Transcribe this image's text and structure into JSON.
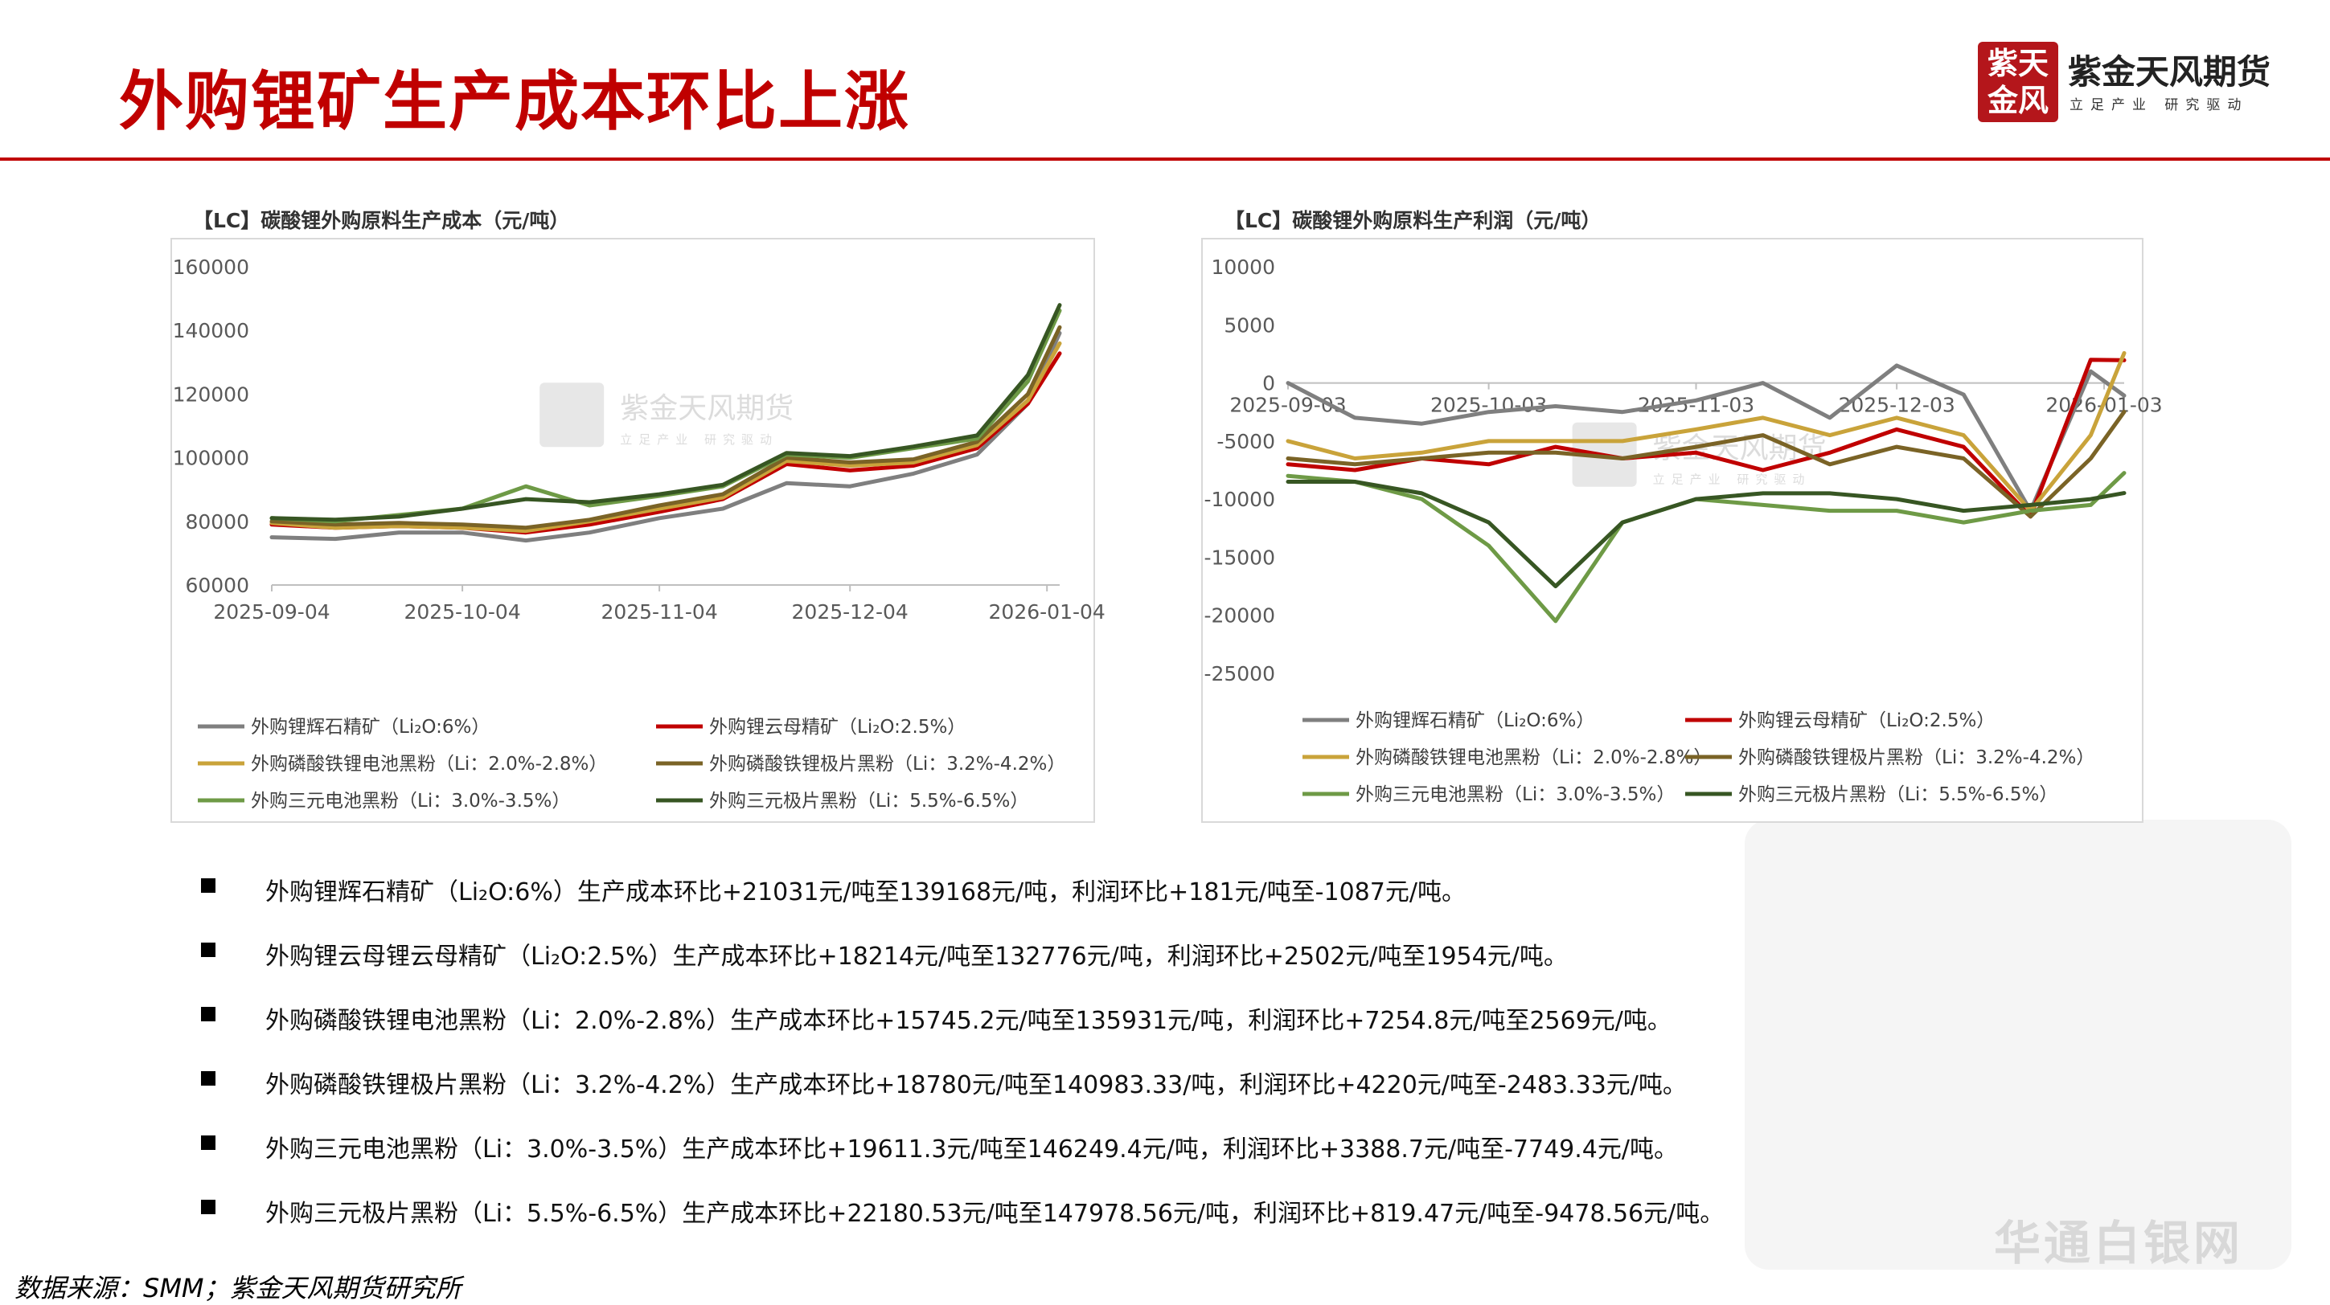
{
  "page_title": "外购锂矿生产成本环比上涨",
  "logo": {
    "seal_chars": [
      "紫天",
      "金风"
    ],
    "name": "紫金天风期货",
    "slogan": "立足产业 研究驱动"
  },
  "colors": {
    "title_red": "#c00000",
    "grey": "#7f7f7f",
    "red": "#c00000",
    "gold": "#c9a33a",
    "olive": "#7a6326",
    "green": "#6e9a46",
    "darkgreen": "#375623"
  },
  "chart_data": [
    {
      "type": "line",
      "title": "【LC】碳酸锂外购原料生产成本（元/吨）",
      "x_start": "2025-09-04",
      "x_end": "2026-01-06",
      "x_ticks": [
        "2025-09-04",
        "2025-10-04",
        "2025-11-04",
        "2025-12-04",
        "2026-01-04"
      ],
      "ylim": [
        60000,
        160000
      ],
      "y_ticks": [
        "160000",
        "140000",
        "120000",
        "100000",
        "80000",
        "60000"
      ],
      "grid": false,
      "legend_position": "bottom",
      "watermark": {
        "name": "紫金天风期货",
        "slogan": "立足产业 研究驱动"
      },
      "x": [
        "2025-09-04",
        "2025-09-14",
        "2025-09-24",
        "2025-10-04",
        "2025-10-14",
        "2025-10-24",
        "2025-11-04",
        "2025-11-14",
        "2025-11-24",
        "2025-12-04",
        "2025-12-14",
        "2025-12-24",
        "2026-01-01",
        "2026-01-06"
      ],
      "series": [
        {
          "name": "外购锂辉石精矿（Li₂O:6%）",
          "color": "#7f7f7f",
          "values": [
            75000,
            74500,
            76500,
            76500,
            74000,
            76500,
            81000,
            84000,
            92000,
            91000,
            95000,
            101000,
            117000,
            139168
          ]
        },
        {
          "name": "外购锂云母精矿（Li₂O:2.5%）",
          "color": "#c00000",
          "values": [
            79000,
            78000,
            78500,
            78000,
            76500,
            79000,
            83000,
            87000,
            98000,
            96000,
            97500,
            103000,
            117000,
            132776
          ]
        },
        {
          "name": "外购磷酸铁锂电池黑粉（Li：2.0%-2.8%）",
          "color": "#c9a33a",
          "values": [
            79500,
            78000,
            78500,
            78000,
            77000,
            80000,
            84000,
            87500,
            99000,
            97500,
            98500,
            104000,
            118000,
            135931
          ]
        },
        {
          "name": "外购磷酸铁锂极片黑粉（Li：3.2%-4.2%）",
          "color": "#7a6326",
          "values": [
            80000,
            79000,
            79500,
            79000,
            78000,
            80500,
            85000,
            88500,
            100000,
            98500,
            99500,
            105000,
            120000,
            140983
          ]
        },
        {
          "name": "外购三元电池黑粉（Li：3.0%-3.5%）",
          "color": "#6e9a46",
          "values": [
            81000,
            80000,
            82000,
            84000,
            91000,
            85000,
            88000,
            91000,
            101000,
            100000,
            103000,
            106000,
            124000,
            146249
          ]
        },
        {
          "name": "外购三元极片黑粉（Li：5.5%-6.5%）",
          "color": "#375623",
          "values": [
            81000,
            80500,
            81500,
            84000,
            87000,
            86000,
            88500,
            91500,
            101500,
            100500,
            103500,
            107000,
            126000,
            147979
          ]
        }
      ]
    },
    {
      "type": "line",
      "title": "【LC】碳酸锂外购原料生产利润（元/吨）",
      "x_start": "2025-09-03",
      "x_end": "2026-01-06",
      "x_ticks": [
        "2025-09-03",
        "2025-10-03",
        "2025-11-03",
        "2025-12-03",
        "2026-01-03"
      ],
      "ylim": [
        -25000,
        10000
      ],
      "y_ticks": [
        "10000",
        "5000",
        "0",
        "-5000",
        "-10000",
        "-15000",
        "-20000",
        "-25000"
      ],
      "grid": false,
      "legend_position": "bottom",
      "watermark": {
        "name": "紫金天风期货",
        "slogan": "立足产业 研究驱动"
      },
      "x": [
        "2025-09-03",
        "2025-09-13",
        "2025-09-23",
        "2025-10-03",
        "2025-10-13",
        "2025-10-23",
        "2025-11-03",
        "2025-11-13",
        "2025-11-23",
        "2025-12-03",
        "2025-12-13",
        "2025-12-23",
        "2026-01-01",
        "2026-01-06"
      ],
      "series": [
        {
          "name": "外购锂辉石精矿（Li₂O:6%）",
          "color": "#7f7f7f",
          "values": [
            0,
            -3000,
            -3500,
            -2500,
            -2000,
            -2500,
            -1500,
            0,
            -3000,
            1500,
            -1000,
            -11000,
            1000,
            -1087
          ]
        },
        {
          "name": "外购锂云母精矿（Li₂O:2.5%）",
          "color": "#c00000",
          "values": [
            -7000,
            -7500,
            -6500,
            -7000,
            -5500,
            -6500,
            -6000,
            -7500,
            -6000,
            -4000,
            -5500,
            -11500,
            2000,
            1954
          ]
        },
        {
          "name": "外购磷酸铁锂电池黑粉（Li：2.0%-2.8%）",
          "color": "#c9a33a",
          "values": [
            -5000,
            -6500,
            -6000,
            -5000,
            -5000,
            -5000,
            -4000,
            -3000,
            -4500,
            -3000,
            -4500,
            -11000,
            -4500,
            2569
          ]
        },
        {
          "name": "外购磷酸铁锂极片黑粉（Li：3.2%-4.2%）",
          "color": "#7a6326",
          "values": [
            -6500,
            -7000,
            -6500,
            -6000,
            -6000,
            -6500,
            -5500,
            -4500,
            -7000,
            -5500,
            -6500,
            -11500,
            -6500,
            -2483
          ]
        },
        {
          "name": "外购三元电池黑粉（Li：3.0%-3.5%）",
          "color": "#6e9a46",
          "values": [
            -8000,
            -8500,
            -10000,
            -14000,
            -20500,
            -12000,
            -10000,
            -10500,
            -11000,
            -11000,
            -12000,
            -11000,
            -10500,
            -7749
          ]
        },
        {
          "name": "外购三元极片黑粉（Li：5.5%-6.5%）",
          "color": "#375623",
          "values": [
            -8500,
            -8500,
            -9500,
            -12000,
            -17500,
            -12000,
            -10000,
            -9500,
            -9500,
            -10000,
            -11000,
            -10500,
            -10000,
            -9479
          ]
        }
      ]
    }
  ],
  "bullets": [
    "外购锂辉石精矿（Li₂O:6%）生产成本环比+21031元/吨至139168元/吨，利润环比+181元/吨至-1087元/吨。",
    "外购锂云母锂云母精矿（Li₂O:2.5%）生产成本环比+18214元/吨至132776元/吨，利润环比+2502元/吨至1954元/吨。",
    "外购磷酸铁锂电池黑粉（Li：2.0%-2.8%）生产成本环比+15745.2元/吨至135931元/吨，利润环比+7254.8元/吨至2569元/吨。",
    "外购磷酸铁锂极片黑粉（Li：3.2%-4.2%）生产成本环比+18780元/吨至140983.33/吨，利润环比+4220元/吨至-2483.33元/吨。",
    "外购三元电池黑粉（Li：3.0%-3.5%）生产成本环比+19611.3元/吨至146249.4元/吨，利润环比+3388.7元/吨至-7749.4元/吨。",
    "外购三元极片黑粉（Li：5.5%-6.5%）生产成本环比+22180.53元/吨至147978.56元/吨，利润环比+819.47元/吨至-9478.56元/吨。"
  ],
  "source": "数据来源：SMM；紫金天风期货研究所",
  "corner_watermark": "华通白银网"
}
